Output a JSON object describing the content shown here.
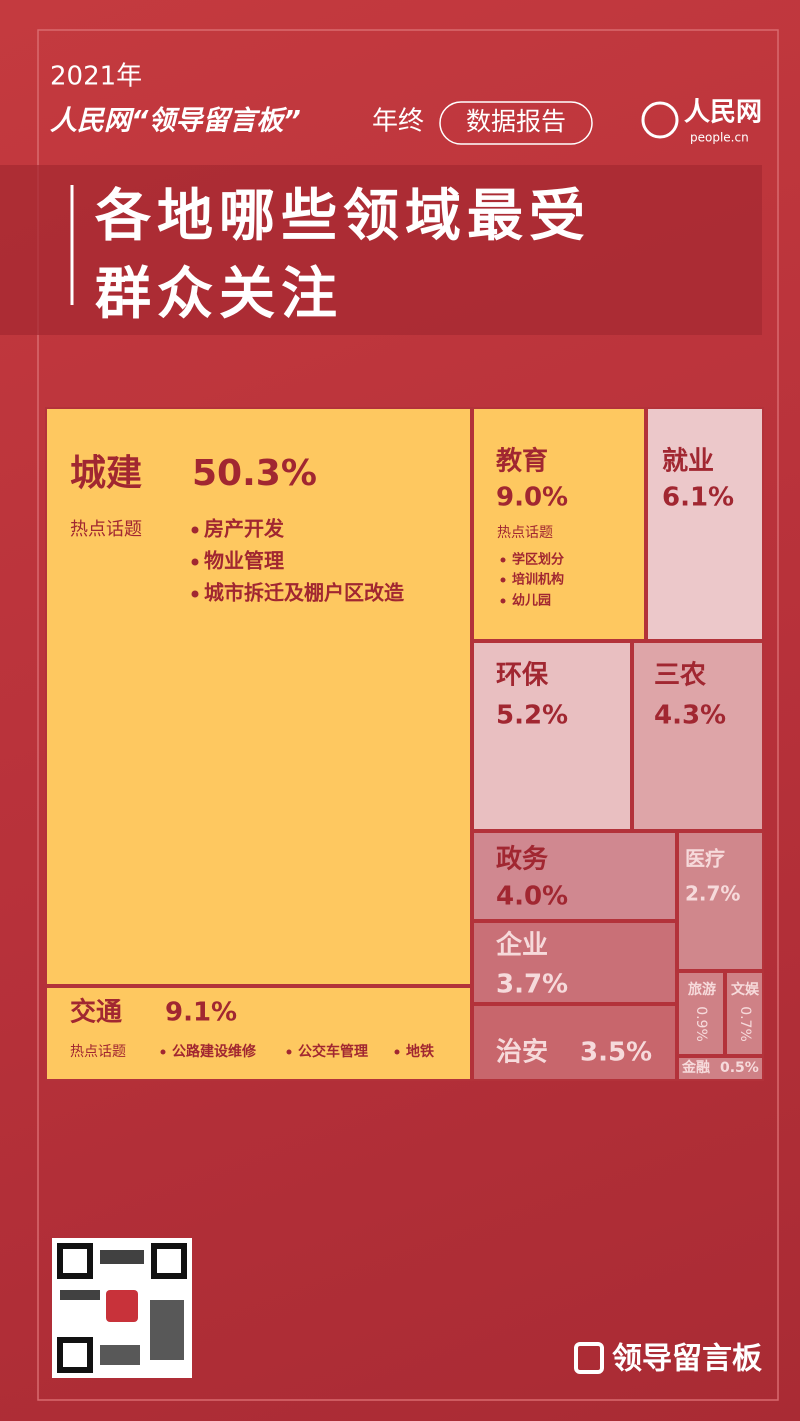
{
  "header": {
    "year": "2021年",
    "brand": "人民网“领导留言板”",
    "suffix": "年终",
    "badge": "数据报告",
    "logo": "人民网",
    "logo_sub": "people.cn"
  },
  "chart_data": {
    "type": "treemap",
    "title": "各地哪些领域最受群众关注",
    "categories": [
      "城建",
      "教育",
      "就业",
      "交通",
      "环保",
      "三农",
      "政务",
      "医疗",
      "企业",
      "治安",
      "旅游",
      "文娱",
      "金融"
    ],
    "values": [
      50.3,
      9.0,
      6.1,
      9.1,
      5.2,
      4.3,
      4.0,
      2.7,
      3.7,
      3.5,
      0.9,
      0.7,
      0.5
    ],
    "value_labels": [
      "50.3%",
      "9.0%",
      "6.1%",
      "9.1%",
      "5.2%",
      "4.3%",
      "4.0%",
      "2.7%",
      "3.7%",
      "3.5%",
      "0.9%",
      "0.7%",
      "0.5%"
    ],
    "annotations": [
      {
        "label": "热点话题",
        "items": [
          "房产开发",
          "物业管理",
          "城市拆迁及棚户区改造"
        ]
      },
      {
        "label": "热点话题",
        "items": [
          "学区划分",
          "培训机构",
          "幼儿园"
        ]
      },
      {
        "label": "热点话题",
        "items": [
          "公路建设维修",
          "公交车管理",
          "地铁"
        ]
      }
    ]
  },
  "footer": {
    "brand": "领导留言板"
  }
}
